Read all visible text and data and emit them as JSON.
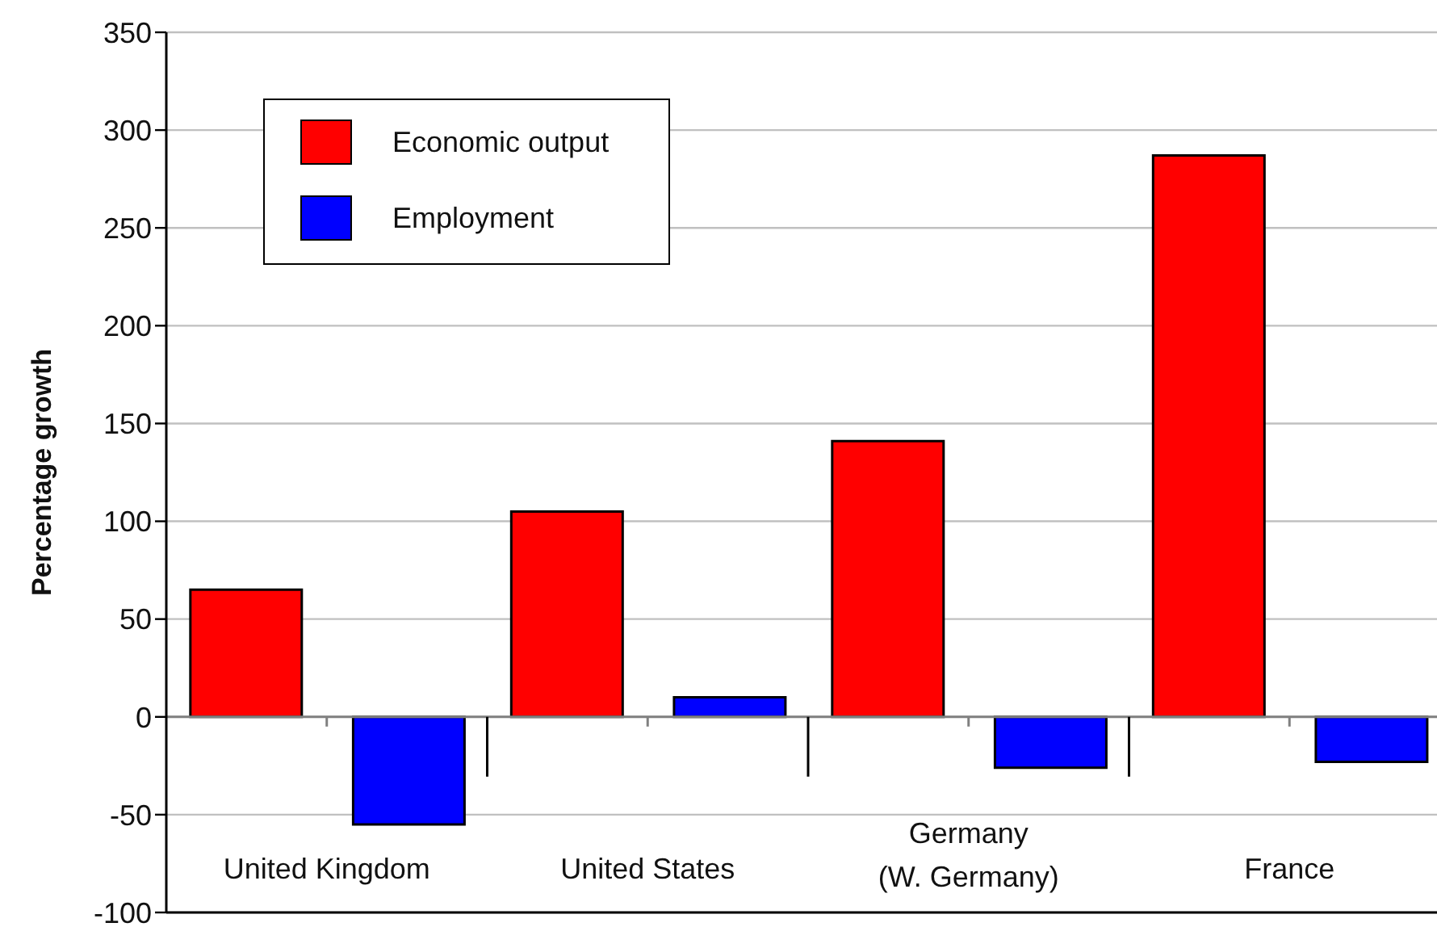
{
  "chart_data": {
    "type": "bar",
    "ylabel": "Percentage growth",
    "categories": [
      "United Kingdom",
      "United States",
      "Germany\n(W. Germany)",
      "France"
    ],
    "series": [
      {
        "name": "Economic output",
        "color": "#ff0000",
        "values": [
          65,
          105,
          141,
          287
        ]
      },
      {
        "name": "Employment",
        "color": "#0000ff",
        "values": [
          -55,
          10,
          -26,
          -23
        ]
      }
    ],
    "ylim": [
      -100,
      350
    ],
    "yticks": [
      -100,
      -50,
      0,
      50,
      100,
      150,
      200,
      250,
      300,
      350
    ],
    "grid": "y",
    "legend": "top left",
    "ref_lines": [
      {
        "axis": "y",
        "value": 0,
        "color": "#808080"
      }
    ]
  }
}
